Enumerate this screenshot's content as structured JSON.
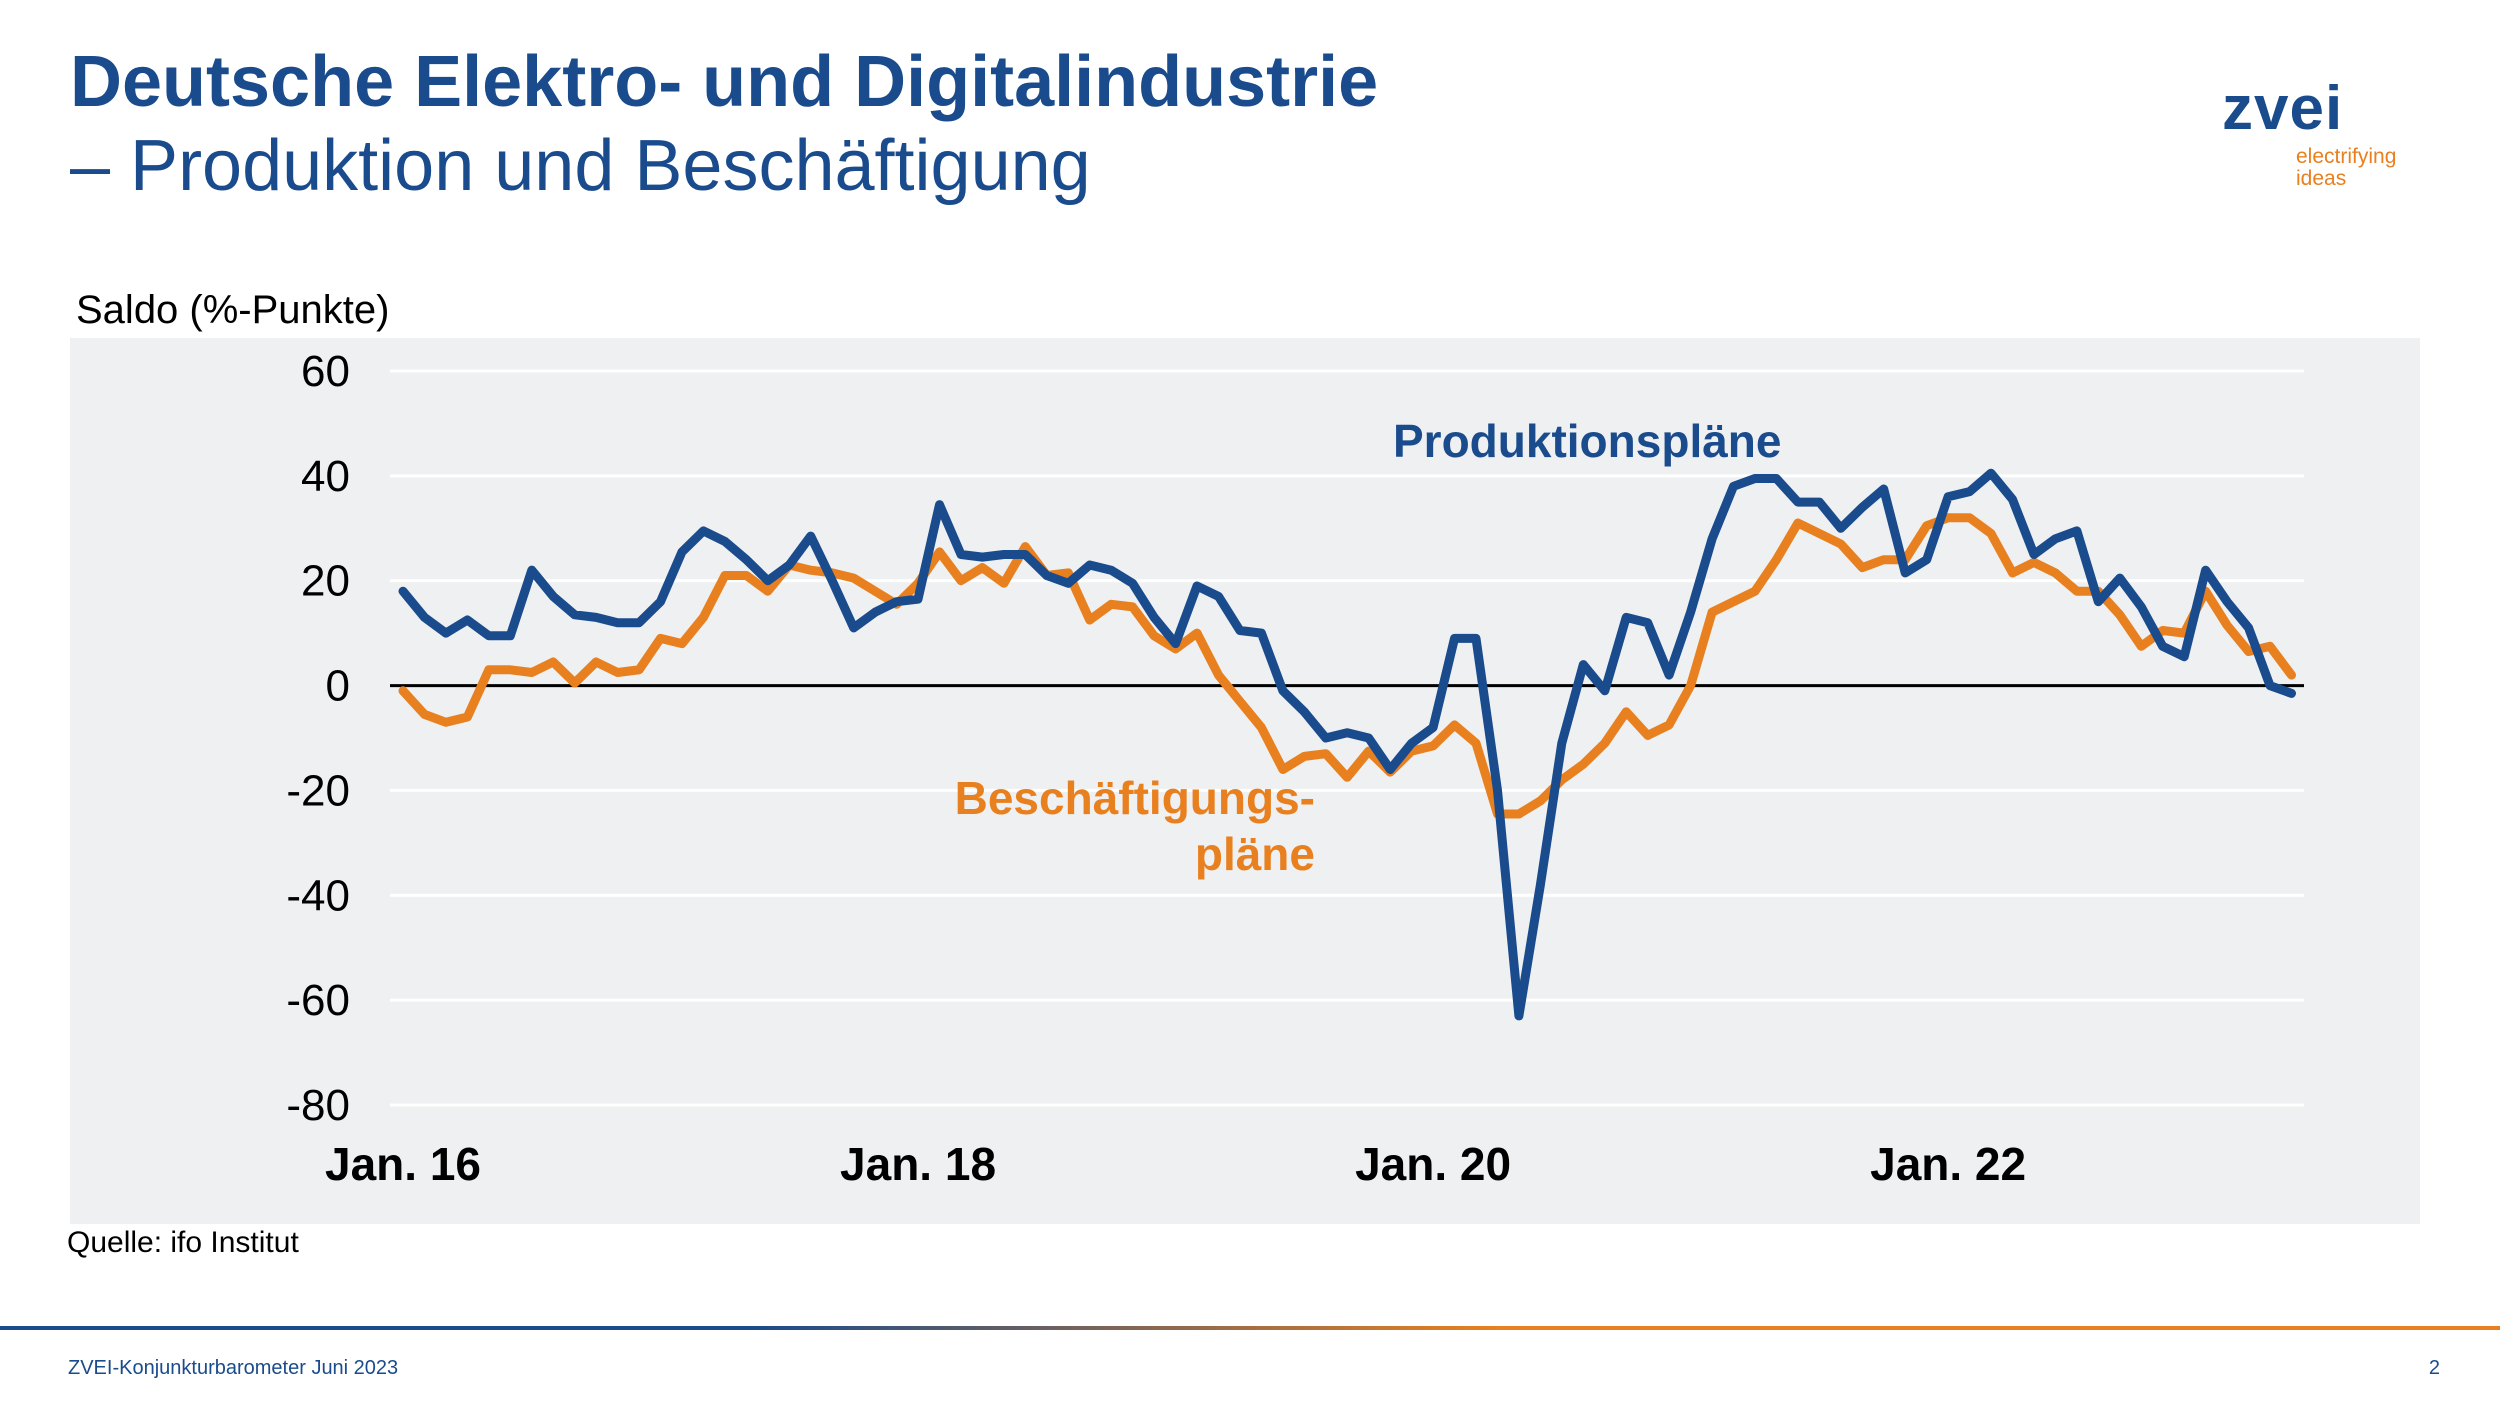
{
  "header": {
    "title": "Deutsche Elektro- und Digitalindustrie",
    "subtitle": "– Produktion und Beschäftigung"
  },
  "logo": {
    "word": "zvei",
    "tagline_1": "electrifying",
    "tagline_2": "ideas"
  },
  "footer": {
    "source": "Quelle: ifo Institut",
    "report": "ZVEI-Konjunkturbarometer Juni 2023",
    "page": "2"
  },
  "colors": {
    "production": "#1a4b8c",
    "employment": "#e8801f",
    "background": "#eef0f1"
  },
  "chart_data": {
    "type": "line",
    "ylabel": "Saldo (%-Punkte)",
    "ylim": [
      -80,
      60
    ],
    "yticks": [
      "60",
      "40",
      "20",
      "0",
      "-20",
      "-40",
      "-60",
      "-80"
    ],
    "xticks": [
      "Jan. 16",
      "Jan. 18",
      "Jan. 20",
      "Jan. 22"
    ],
    "x_start": "2016-01",
    "x_end": "2023-05",
    "grid": true,
    "series": [
      {
        "name": "Produktionspläne",
        "label_lines": [
          "Produktionspläne"
        ],
        "values": [
          18,
          13,
          10,
          12.5,
          9.5,
          9.5,
          22,
          17,
          13.5,
          13,
          12,
          12,
          16,
          25.5,
          29.5,
          27.5,
          24,
          20,
          23,
          28.5,
          20,
          11,
          14,
          16,
          16.5,
          34.5,
          25,
          24.5,
          25,
          25,
          21,
          19.5,
          23,
          22,
          19.5,
          13,
          8,
          19,
          17,
          10.5,
          10,
          -1,
          -5,
          -10,
          -9,
          -10,
          -16,
          -11,
          -8,
          9,
          9,
          -20,
          -63,
          -38,
          -11,
          4,
          -1,
          13,
          12,
          2,
          14,
          28,
          38,
          39.5,
          39.5,
          35,
          35,
          30,
          34,
          37.5,
          21.5,
          24,
          36,
          37,
          40.5,
          35.5,
          25,
          28,
          29.5,
          16,
          20.5,
          15,
          7.5,
          5.5,
          22,
          16,
          11,
          0,
          -1.5
        ]
      },
      {
        "name": "Beschäftigungspläne",
        "label_lines": [
          "Beschäftigungs-",
          "pläne"
        ],
        "values": [
          -1,
          -5.5,
          -7,
          -6,
          3,
          3,
          2.5,
          4.5,
          0.5,
          4.5,
          2.5,
          3,
          9,
          8,
          13,
          21,
          21,
          18,
          23,
          22,
          21.5,
          20.5,
          18,
          15.5,
          19.5,
          25.5,
          20,
          22.5,
          19.5,
          26.5,
          21,
          21.5,
          12.5,
          15.5,
          15,
          9.5,
          7,
          10,
          2,
          -3,
          -8,
          -16,
          -13.5,
          -13,
          -17.5,
          -12.5,
          -16.5,
          -12.5,
          -11.5,
          -7.5,
          -11,
          -24.5,
          -24.5,
          -22,
          -18,
          -15,
          -11,
          -5,
          -9.5,
          -7.5,
          0,
          14,
          16,
          18,
          24,
          31,
          29,
          27,
          22.5,
          24,
          24,
          30.5,
          32,
          32,
          29,
          21.5,
          23.5,
          21.5,
          18,
          18,
          13.5,
          7.5,
          10.5,
          10,
          18,
          11.5,
          6.5,
          7.5,
          2
        ]
      }
    ]
  }
}
